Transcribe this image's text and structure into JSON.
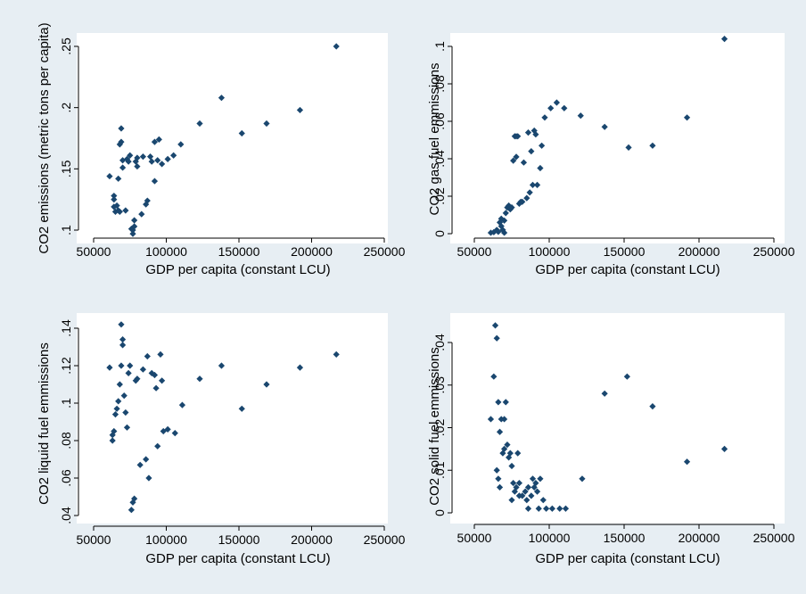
{
  "colors": {
    "outer_background": "#e7eef3",
    "plot_background": "#ffffff",
    "marker": "#1a476f",
    "axis": "#000000"
  },
  "marker_shape": "diamond",
  "chart_data": [
    {
      "type": "scatter",
      "xlabel": "GDP per capita (constant LCU)",
      "ylabel": "CO2 emissions (metric tons per capita)",
      "xlim": [
        50000,
        250000
      ],
      "ylim": [
        0.1,
        0.25
      ],
      "x_ticks": [
        50000,
        100000,
        150000,
        200000,
        250000
      ],
      "x_tick_labels": [
        "50000",
        "100000",
        "150000",
        "200000",
        "250000"
      ],
      "y_ticks": [
        0.1,
        0.15,
        0.2,
        0.25
      ],
      "y_tick_labels": [
        ".1",
        ".15",
        ".2",
        ".25"
      ],
      "grid": false,
      "points": [
        [
          61000,
          0.144
        ],
        [
          64000,
          0.128
        ],
        [
          64000,
          0.125
        ],
        [
          64000,
          0.119
        ],
        [
          65000,
          0.115
        ],
        [
          66000,
          0.12
        ],
        [
          67000,
          0.142
        ],
        [
          67000,
          0.116
        ],
        [
          68000,
          0.17
        ],
        [
          68000,
          0.115
        ],
        [
          69000,
          0.172
        ],
        [
          69000,
          0.183
        ],
        [
          70000,
          0.157
        ],
        [
          70000,
          0.151
        ],
        [
          72000,
          0.116
        ],
        [
          73000,
          0.158
        ],
        [
          74000,
          0.156
        ],
        [
          75000,
          0.161
        ],
        [
          76000,
          0.101
        ],
        [
          77000,
          0.1
        ],
        [
          77000,
          0.097
        ],
        [
          78000,
          0.103
        ],
        [
          78000,
          0.108
        ],
        [
          79000,
          0.156
        ],
        [
          80000,
          0.159
        ],
        [
          80000,
          0.152
        ],
        [
          83000,
          0.113
        ],
        [
          84000,
          0.16
        ],
        [
          86000,
          0.121
        ],
        [
          87000,
          0.124
        ],
        [
          89000,
          0.16
        ],
        [
          90000,
          0.156
        ],
        [
          92000,
          0.14
        ],
        [
          92000,
          0.172
        ],
        [
          94000,
          0.157
        ],
        [
          95000,
          0.174
        ],
        [
          97000,
          0.154
        ],
        [
          101000,
          0.158
        ],
        [
          105000,
          0.161
        ],
        [
          110000,
          0.17
        ],
        [
          123000,
          0.187
        ],
        [
          138000,
          0.208
        ],
        [
          152000,
          0.179
        ],
        [
          169000,
          0.187
        ],
        [
          192000,
          0.198
        ],
        [
          217000,
          0.25
        ]
      ]
    },
    {
      "type": "scatter",
      "xlabel": "GDP per capita (constant LCU)",
      "ylabel": "CO2 gas fuel emmissions",
      "xlim": [
        50000,
        250000
      ],
      "ylim": [
        0,
        0.1
      ],
      "x_ticks": [
        50000,
        100000,
        150000,
        200000,
        250000
      ],
      "x_tick_labels": [
        "50000",
        "100000",
        "150000",
        "200000",
        "250000"
      ],
      "y_ticks": [
        0,
        0.02,
        0.04,
        0.06,
        0.08,
        0.1
      ],
      "y_tick_labels": [
        "0",
        ".02",
        ".04",
        ".06",
        ".08",
        ".1"
      ],
      "grid": false,
      "points": [
        [
          61000,
          0.0005
        ],
        [
          63000,
          0.0008
        ],
        [
          65000,
          0.002
        ],
        [
          66000,
          0.001
        ],
        [
          67000,
          0.006
        ],
        [
          68000,
          0.004
        ],
        [
          68000,
          0.008
        ],
        [
          69000,
          0.002
        ],
        [
          70000,
          0.007
        ],
        [
          70000,
          0.0005
        ],
        [
          71000,
          0.011
        ],
        [
          72000,
          0.014
        ],
        [
          73000,
          0.015
        ],
        [
          74000,
          0.013
        ],
        [
          75000,
          0.014
        ],
        [
          76000,
          0.039
        ],
        [
          77000,
          0.052
        ],
        [
          78000,
          0.052
        ],
        [
          78000,
          0.041
        ],
        [
          79000,
          0.052
        ],
        [
          80000,
          0.016
        ],
        [
          81000,
          0.017
        ],
        [
          82000,
          0.017
        ],
        [
          83000,
          0.038
        ],
        [
          85000,
          0.019
        ],
        [
          86000,
          0.054
        ],
        [
          87000,
          0.022
        ],
        [
          88000,
          0.044
        ],
        [
          89000,
          0.026
        ],
        [
          90000,
          0.055
        ],
        [
          91000,
          0.053
        ],
        [
          92000,
          0.026
        ],
        [
          94000,
          0.035
        ],
        [
          95000,
          0.047
        ],
        [
          97000,
          0.062
        ],
        [
          101000,
          0.067
        ],
        [
          105000,
          0.07
        ],
        [
          110000,
          0.067
        ],
        [
          121000,
          0.063
        ],
        [
          137000,
          0.057
        ],
        [
          153000,
          0.046
        ],
        [
          169000,
          0.047
        ],
        [
          192000,
          0.062
        ],
        [
          217000,
          0.104
        ]
      ]
    },
    {
      "type": "scatter",
      "xlabel": "GDP per capita (constant LCU)",
      "ylabel": "CO2 liquid fuel emmissions",
      "xlim": [
        50000,
        250000
      ],
      "ylim": [
        0.04,
        0.14
      ],
      "x_ticks": [
        50000,
        100000,
        150000,
        200000,
        250000
      ],
      "x_tick_labels": [
        "50000",
        "100000",
        "150000",
        "200000",
        "250000"
      ],
      "y_ticks": [
        0.04,
        0.06,
        0.08,
        0.1,
        0.12,
        0.14
      ],
      "y_tick_labels": [
        ".04",
        ".06",
        ".08",
        ".1",
        ".12",
        ".14"
      ],
      "grid": false,
      "points": [
        [
          61000,
          0.119
        ],
        [
          63000,
          0.083
        ],
        [
          63000,
          0.08
        ],
        [
          64000,
          0.085
        ],
        [
          65000,
          0.094
        ],
        [
          66000,
          0.097
        ],
        [
          67000,
          0.101
        ],
        [
          68000,
          0.11
        ],
        [
          69000,
          0.12
        ],
        [
          69000,
          0.142
        ],
        [
          70000,
          0.131
        ],
        [
          70000,
          0.134
        ],
        [
          71000,
          0.104
        ],
        [
          72000,
          0.095
        ],
        [
          73000,
          0.087
        ],
        [
          74000,
          0.116
        ],
        [
          75000,
          0.12
        ],
        [
          76000,
          0.043
        ],
        [
          77000,
          0.047
        ],
        [
          78000,
          0.049
        ],
        [
          79000,
          0.112
        ],
        [
          80000,
          0.113
        ],
        [
          82000,
          0.067
        ],
        [
          84000,
          0.118
        ],
        [
          86000,
          0.07
        ],
        [
          87000,
          0.125
        ],
        [
          88000,
          0.06
        ],
        [
          90000,
          0.116
        ],
        [
          92000,
          0.115
        ],
        [
          93000,
          0.108
        ],
        [
          94000,
          0.077
        ],
        [
          96000,
          0.126
        ],
        [
          97000,
          0.112
        ],
        [
          98000,
          0.085
        ],
        [
          101000,
          0.086
        ],
        [
          106000,
          0.084
        ],
        [
          111000,
          0.099
        ],
        [
          123000,
          0.113
        ],
        [
          138000,
          0.12
        ],
        [
          152000,
          0.097
        ],
        [
          169000,
          0.11
        ],
        [
          192000,
          0.119
        ],
        [
          217000,
          0.126
        ]
      ]
    },
    {
      "type": "scatter",
      "xlabel": "GDP per capita (constant LCU)",
      "ylabel": "CO2 solid fuel emmissions",
      "xlim": [
        50000,
        250000
      ],
      "ylim": [
        0,
        0.04
      ],
      "x_ticks": [
        50000,
        100000,
        150000,
        200000,
        250000
      ],
      "x_tick_labels": [
        "50000",
        "100000",
        "150000",
        "200000",
        "250000"
      ],
      "y_ticks": [
        0,
        0.01,
        0.02,
        0.03,
        0.04
      ],
      "y_tick_labels": [
        "0",
        ".01",
        ".02",
        ".03",
        ".04"
      ],
      "grid": false,
      "points": [
        [
          61000,
          0.022
        ],
        [
          63000,
          0.032
        ],
        [
          64000,
          0.044
        ],
        [
          65000,
          0.041
        ],
        [
          65000,
          0.01
        ],
        [
          66000,
          0.026
        ],
        [
          66000,
          0.008
        ],
        [
          67000,
          0.019
        ],
        [
          67000,
          0.006
        ],
        [
          68000,
          0.022
        ],
        [
          69000,
          0.014
        ],
        [
          70000,
          0.015
        ],
        [
          70000,
          0.022
        ],
        [
          71000,
          0.026
        ],
        [
          72000,
          0.016
        ],
        [
          73000,
          0.013
        ],
        [
          74000,
          0.014
        ],
        [
          75000,
          0.011
        ],
        [
          75000,
          0.003
        ],
        [
          76000,
          0.007
        ],
        [
          77000,
          0.005
        ],
        [
          78000,
          0.006
        ],
        [
          79000,
          0.014
        ],
        [
          80000,
          0.007
        ],
        [
          80000,
          0.004
        ],
        [
          82000,
          0.004
        ],
        [
          84000,
          0.005
        ],
        [
          85000,
          0.003
        ],
        [
          86000,
          0.006
        ],
        [
          86000,
          0.001
        ],
        [
          88000,
          0.004
        ],
        [
          89000,
          0.008
        ],
        [
          90000,
          0.006
        ],
        [
          91000,
          0.007
        ],
        [
          92000,
          0.005
        ],
        [
          93000,
          0.001
        ],
        [
          94000,
          0.008
        ],
        [
          96000,
          0.003
        ],
        [
          98000,
          0.001
        ],
        [
          102000,
          0.001
        ],
        [
          107000,
          0.001
        ],
        [
          111000,
          0.001
        ],
        [
          122000,
          0.008
        ],
        [
          137000,
          0.028
        ],
        [
          152000,
          0.032
        ],
        [
          169000,
          0.025
        ],
        [
          192000,
          0.012
        ],
        [
          217000,
          0.015
        ]
      ]
    }
  ]
}
